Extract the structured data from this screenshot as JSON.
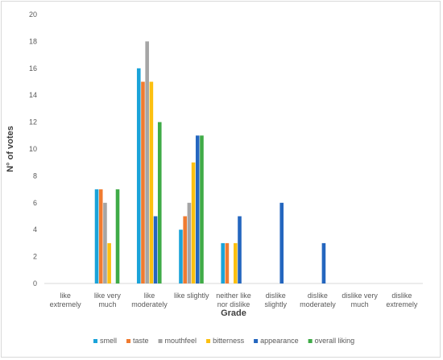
{
  "chart_data": {
    "type": "bar",
    "xlabel": "Grade",
    "ylabel": "N° of votes",
    "ylim": [
      0,
      20
    ],
    "yticks": [
      0,
      2,
      4,
      6,
      8,
      10,
      12,
      14,
      16,
      18,
      20
    ],
    "grid": false,
    "legend_position": "bottom",
    "categories": [
      [
        "like",
        "extremely"
      ],
      [
        "like very",
        "much"
      ],
      [
        "like",
        "moderately"
      ],
      [
        "like slightly"
      ],
      [
        "neither like",
        "nor dislike"
      ],
      [
        "dislike",
        "slightly"
      ],
      [
        "dislike",
        "moderately"
      ],
      [
        "dislike very",
        "much"
      ],
      [
        "dislike",
        "extremely"
      ]
    ],
    "series": [
      {
        "name": "smell",
        "color": "#1aa3d9",
        "values": [
          0,
          7,
          16,
          4,
          3,
          0,
          0,
          0,
          0
        ]
      },
      {
        "name": "taste",
        "color": "#f07b30",
        "values": [
          0,
          7,
          15,
          5,
          3,
          0,
          0,
          0,
          0
        ]
      },
      {
        "name": "mouthfeel",
        "color": "#a5a5a5",
        "values": [
          0,
          6,
          18,
          6,
          0,
          0,
          0,
          0,
          0
        ]
      },
      {
        "name": "bitterness",
        "color": "#fcc010",
        "values": [
          0,
          3,
          15,
          9,
          3,
          0,
          0,
          0,
          0
        ]
      },
      {
        "name": "appearance",
        "color": "#2466bf",
        "values": [
          0,
          0,
          5,
          11,
          5,
          6,
          3,
          0,
          0
        ]
      },
      {
        "name": "overall liking",
        "color": "#3fab47",
        "values": [
          0,
          7,
          12,
          11,
          0,
          0,
          0,
          0,
          0
        ]
      }
    ]
  }
}
